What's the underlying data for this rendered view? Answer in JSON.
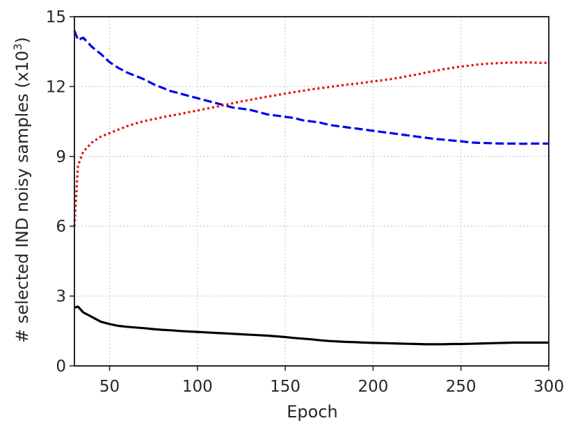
{
  "chart_data": {
    "type": "line",
    "title": "",
    "xlabel": "Epoch",
    "ylabel": {
      "prefix": "# selected IND noisy samples (x10",
      "exponent": "3",
      "suffix": ")"
    },
    "xlim": [
      30,
      300
    ],
    "ylim": [
      0,
      15
    ],
    "xticks": [
      50,
      100,
      150,
      200,
      250,
      300
    ],
    "yticks": [
      0,
      3,
      6,
      9,
      12,
      15
    ],
    "grid": true,
    "legend": "none",
    "x": [
      30,
      32,
      35,
      40,
      45,
      50,
      55,
      60,
      65,
      70,
      75,
      80,
      85,
      90,
      95,
      100,
      105,
      110,
      115,
      120,
      125,
      130,
      135,
      140,
      145,
      150,
      155,
      160,
      165,
      170,
      175,
      180,
      185,
      190,
      195,
      200,
      205,
      210,
      215,
      220,
      225,
      230,
      235,
      240,
      245,
      250,
      255,
      260,
      265,
      270,
      275,
      280,
      285,
      290,
      295,
      300
    ],
    "series": [
      {
        "color": "#0000ee",
        "style": "dashed",
        "values": [
          14.4,
          14.0,
          14.1,
          13.7,
          13.4,
          13.05,
          12.8,
          12.6,
          12.45,
          12.3,
          12.1,
          11.95,
          11.8,
          11.7,
          11.6,
          11.5,
          11.4,
          11.3,
          11.2,
          11.1,
          11.05,
          11.0,
          10.9,
          10.8,
          10.75,
          10.7,
          10.65,
          10.55,
          10.5,
          10.45,
          10.35,
          10.3,
          10.25,
          10.2,
          10.15,
          10.1,
          10.05,
          10.0,
          9.95,
          9.9,
          9.85,
          9.8,
          9.75,
          9.72,
          9.68,
          9.65,
          9.6,
          9.58,
          9.57,
          9.56,
          9.55,
          9.55,
          9.54,
          9.55,
          9.55,
          9.55
        ]
      },
      {
        "color": "#ee0000",
        "style": "dotted",
        "values": [
          6.0,
          8.6,
          9.2,
          9.6,
          9.85,
          10.0,
          10.15,
          10.3,
          10.42,
          10.52,
          10.6,
          10.68,
          10.75,
          10.82,
          10.9,
          10.97,
          11.05,
          11.12,
          11.2,
          11.28,
          11.36,
          11.43,
          11.5,
          11.57,
          11.63,
          11.7,
          11.76,
          11.82,
          11.88,
          11.93,
          11.98,
          12.03,
          12.08,
          12.12,
          12.17,
          12.22,
          12.27,
          12.32,
          12.38,
          12.45,
          12.52,
          12.6,
          12.67,
          12.74,
          12.8,
          12.86,
          12.9,
          12.95,
          12.98,
          13.0,
          13.02,
          13.03,
          13.03,
          13.03,
          13.02,
          13.02
        ]
      },
      {
        "color": "#000000",
        "style": "solid",
        "values": [
          2.5,
          2.55,
          2.3,
          2.1,
          1.9,
          1.8,
          1.72,
          1.68,
          1.65,
          1.62,
          1.58,
          1.55,
          1.53,
          1.5,
          1.48,
          1.46,
          1.44,
          1.42,
          1.4,
          1.38,
          1.36,
          1.34,
          1.32,
          1.3,
          1.27,
          1.24,
          1.2,
          1.17,
          1.14,
          1.1,
          1.07,
          1.05,
          1.03,
          1.02,
          1.0,
          0.99,
          0.98,
          0.97,
          0.96,
          0.95,
          0.94,
          0.93,
          0.93,
          0.93,
          0.94,
          0.94,
          0.95,
          0.96,
          0.97,
          0.98,
          0.99,
          1.0,
          1.0,
          1.0,
          1.0,
          1.0
        ]
      }
    ]
  }
}
